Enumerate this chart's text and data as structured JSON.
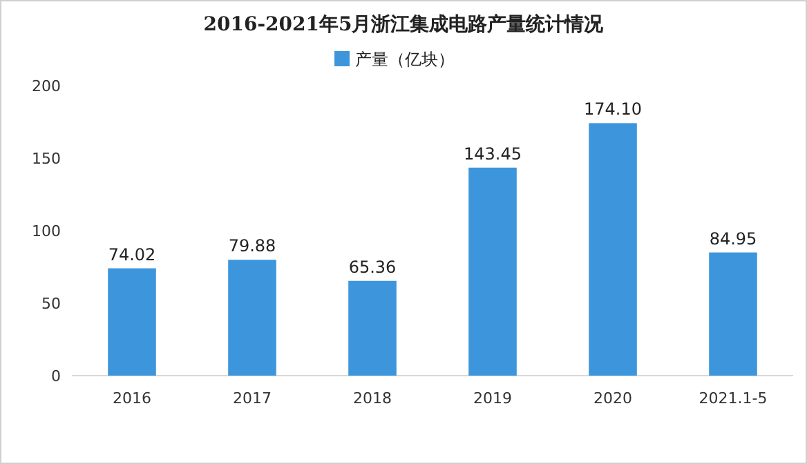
{
  "chart_data": {
    "type": "bar",
    "title": "2016-2021年5月浙江集成电路产量统计情况",
    "legend": "top",
    "categories": [
      "2016",
      "2017",
      "2018",
      "2019",
      "2020",
      "2021.1-5"
    ],
    "series": [
      {
        "name": "产量（亿块）",
        "color": "#3d96dc",
        "values": [
          74.02,
          79.88,
          65.36,
          143.45,
          174.1,
          84.95
        ],
        "value_labels": [
          "74.02",
          "79.88",
          "65.36",
          "143.45",
          "174.10",
          "84.95"
        ]
      }
    ],
    "ylim": [
      0,
      200
    ],
    "yticks": [
      0,
      50,
      100,
      150,
      200
    ]
  }
}
